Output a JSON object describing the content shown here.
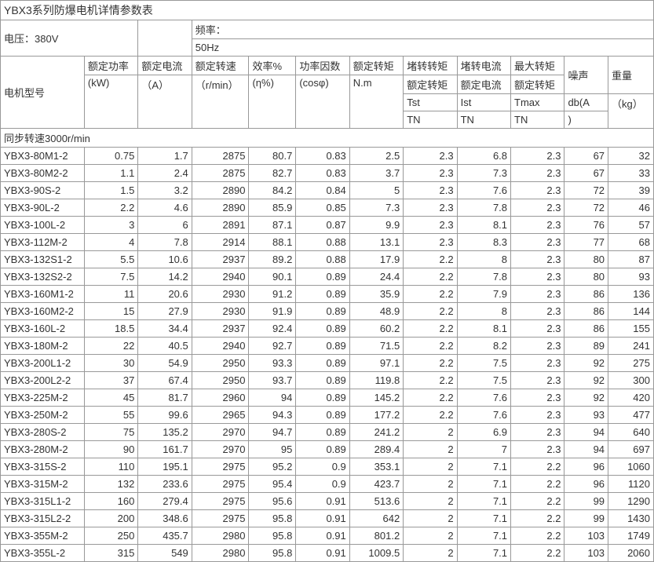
{
  "title": "YBX3系列防爆电机详情参数表",
  "voltage_label": "电压：380V",
  "freq_line1": "频率：",
  "freq_line2": "50Hz",
  "model_label": "电机型号",
  "headers": {
    "c1a": "额定功率",
    "c1b": "(kW)",
    "c2a": "额定电流",
    "c2b": "（A）",
    "c3a": "额定转速",
    "c3b": "（r/min）",
    "c4a": "效率%",
    "c4b": "(η%)",
    "c5a": "功率因数",
    "c5b": "(cosφ)",
    "c6a": "额定转矩",
    "c6b": "N.m",
    "c7a": "堵转转矩",
    "c7b": "额定转矩",
    "c7c": "Tst",
    "c7d": "TN",
    "c8a": "堵转电流",
    "c8b": "额定电流",
    "c8c": "Ist",
    "c8d": "TN",
    "c9a": "最大转矩",
    "c9b": "额定转矩",
    "c9c": "Tmax",
    "c9d": "TN",
    "c10a": "噪声",
    "c10b": "db(A",
    "c10c": ")",
    "c11a": "重量",
    "c11b": "（kg）"
  },
  "section": "同步转速3000r/min",
  "rows": [
    [
      "YBX3-80M1-2",
      "0.75",
      "1.7",
      "2875",
      "80.7",
      "0.83",
      "2.5",
      "2.3",
      "6.8",
      "2.3",
      "67",
      "32"
    ],
    [
      "YBX3-80M2-2",
      "1.1",
      "2.4",
      "2875",
      "82.7",
      "0.83",
      "3.7",
      "2.3",
      "7.3",
      "2.3",
      "67",
      "33"
    ],
    [
      "YBX3-90S-2",
      "1.5",
      "3.2",
      "2890",
      "84.2",
      "0.84",
      "5",
      "2.3",
      "7.6",
      "2.3",
      "72",
      "39"
    ],
    [
      "YBX3-90L-2",
      "2.2",
      "4.6",
      "2890",
      "85.9",
      "0.85",
      "7.3",
      "2.3",
      "7.8",
      "2.3",
      "72",
      "46"
    ],
    [
      "YBX3-100L-2",
      "3",
      "6",
      "2891",
      "87.1",
      "0.87",
      "9.9",
      "2.3",
      "8.1",
      "2.3",
      "76",
      "57"
    ],
    [
      "YBX3-112M-2",
      "4",
      "7.8",
      "2914",
      "88.1",
      "0.88",
      "13.1",
      "2.3",
      "8.3",
      "2.3",
      "77",
      "68"
    ],
    [
      "YBX3-132S1-2",
      "5.5",
      "10.6",
      "2937",
      "89.2",
      "0.88",
      "17.9",
      "2.2",
      "8",
      "2.3",
      "80",
      "87"
    ],
    [
      "YBX3-132S2-2",
      "7.5",
      "14.2",
      "2940",
      "90.1",
      "0.89",
      "24.4",
      "2.2",
      "7.8",
      "2.3",
      "80",
      "93"
    ],
    [
      "YBX3-160M1-2",
      "11",
      "20.6",
      "2930",
      "91.2",
      "0.89",
      "35.9",
      "2.2",
      "7.9",
      "2.3",
      "86",
      "136"
    ],
    [
      "YBX3-160M2-2",
      "15",
      "27.9",
      "2930",
      "91.9",
      "0.89",
      "48.9",
      "2.2",
      "8",
      "2.3",
      "86",
      "144"
    ],
    [
      "YBX3-160L-2",
      "18.5",
      "34.4",
      "2937",
      "92.4",
      "0.89",
      "60.2",
      "2.2",
      "8.1",
      "2.3",
      "86",
      "155"
    ],
    [
      "YBX3-180M-2",
      "22",
      "40.5",
      "2940",
      "92.7",
      "0.89",
      "71.5",
      "2.2",
      "8.2",
      "2.3",
      "89",
      "241"
    ],
    [
      "YBX3-200L1-2",
      "30",
      "54.9",
      "2950",
      "93.3",
      "0.89",
      "97.1",
      "2.2",
      "7.5",
      "2.3",
      "92",
      "275"
    ],
    [
      "YBX3-200L2-2",
      "37",
      "67.4",
      "2950",
      "93.7",
      "0.89",
      "119.8",
      "2.2",
      "7.5",
      "2.3",
      "92",
      "300"
    ],
    [
      "YBX3-225M-2",
      "45",
      "81.7",
      "2960",
      "94",
      "0.89",
      "145.2",
      "2.2",
      "7.6",
      "2.3",
      "92",
      "420"
    ],
    [
      "YBX3-250M-2",
      "55",
      "99.6",
      "2965",
      "94.3",
      "0.89",
      "177.2",
      "2.2",
      "7.6",
      "2.3",
      "93",
      "477"
    ],
    [
      "YBX3-280S-2",
      "75",
      "135.2",
      "2970",
      "94.7",
      "0.89",
      "241.2",
      "2",
      "6.9",
      "2.3",
      "94",
      "640"
    ],
    [
      "YBX3-280M-2",
      "90",
      "161.7",
      "2970",
      "95",
      "0.89",
      "289.4",
      "2",
      "7",
      "2.3",
      "94",
      "697"
    ],
    [
      "YBX3-315S-2",
      "110",
      "195.1",
      "2975",
      "95.2",
      "0.9",
      "353.1",
      "2",
      "7.1",
      "2.2",
      "96",
      "1060"
    ],
    [
      "YBX3-315M-2",
      "132",
      "233.6",
      "2975",
      "95.4",
      "0.9",
      "423.7",
      "2",
      "7.1",
      "2.2",
      "96",
      "1120"
    ],
    [
      "YBX3-315L1-2",
      "160",
      "279.4",
      "2975",
      "95.6",
      "0.91",
      "513.6",
      "2",
      "7.1",
      "2.2",
      "99",
      "1290"
    ],
    [
      "YBX3-315L2-2",
      "200",
      "348.6",
      "2975",
      "95.8",
      "0.91",
      "642",
      "2",
      "7.1",
      "2.2",
      "99",
      "1430"
    ],
    [
      "YBX3-355M-2",
      "250",
      "435.7",
      "2980",
      "95.8",
      "0.91",
      "801.2",
      "2",
      "7.1",
      "2.2",
      "103",
      "1749"
    ],
    [
      "YBX3-355L-2",
      "315",
      "549",
      "2980",
      "95.8",
      "0.91",
      "1009.5",
      "2",
      "7.1",
      "2.2",
      "103",
      "2060"
    ]
  ]
}
